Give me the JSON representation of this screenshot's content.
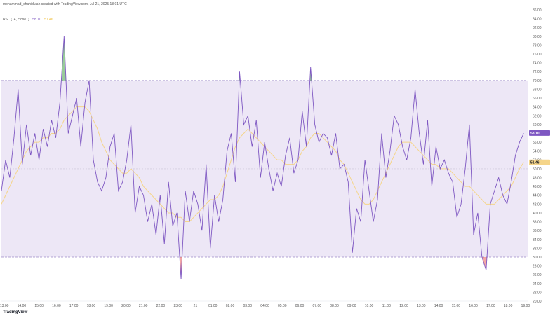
{
  "header": {
    "caption": "mohammad_chahidulah created with TradingView.com, Jul 21, 2025 18:01 UTC"
  },
  "legend": {
    "indicator": "RSI",
    "params": "14, close",
    "rsi_value": "58.10",
    "ma_value": "51.46"
  },
  "footer": {
    "brand": "TradingView"
  },
  "colors": {
    "rsi_line": "#7e57c2",
    "ma_line": "#f5d58a",
    "band_fill": "#ede7f6",
    "band_border": "#9c89c8",
    "overbought_fill": "#43a047",
    "oversold_fill": "#e53935",
    "rsi_tag": "#7e57c2",
    "ma_tag": "#f5d58a"
  },
  "chart_data": {
    "type": "line",
    "indicator": "RSI (14, close) with moving average",
    "ylim": [
      20,
      86
    ],
    "y_ticks": [
      "20.00",
      "22.00",
      "24.00",
      "26.00",
      "28.00",
      "30.00",
      "32.00",
      "34.00",
      "36.00",
      "38.00",
      "40.00",
      "42.00",
      "44.00",
      "46.00",
      "48.00",
      "50.00",
      "52.00",
      "54.00",
      "56.00",
      "58.00",
      "60.00",
      "62.00",
      "64.00",
      "66.00",
      "68.00",
      "70.00",
      "72.00",
      "74.00",
      "76.00",
      "78.00",
      "80.00",
      "82.00",
      "84.00",
      "86.00"
    ],
    "x_ticks": [
      "13:00",
      "14:00",
      "15:00",
      "16:00",
      "17:00",
      "18:00",
      "19:00",
      "20:00",
      "21:00",
      "22:00",
      "23:00",
      "21",
      "01:00",
      "02:00",
      "03:00",
      "04:00",
      "05:00",
      "06:00",
      "07:00",
      "08:00",
      "09:00",
      "10:00",
      "11:00",
      "12:00",
      "13:00",
      "14:00",
      "15:00",
      "16:00",
      "17:00",
      "18:00",
      "19:00"
    ],
    "x_tick_positions": [
      0.5,
      3.5,
      6.5,
      9.5,
      12.5,
      15.5,
      18.5,
      21.5,
      24.5,
      27.5,
      30.5,
      33.5,
      36.5,
      39.5,
      42.5,
      45.5,
      48.5,
      51.5,
      54.5,
      57.5,
      60.5,
      63.5,
      66.5,
      69.5,
      72.5,
      75.5,
      78.5,
      81.5,
      84.5,
      87.5,
      90.5
    ],
    "x_range": [
      0,
      91
    ],
    "bands": {
      "overbought": 70,
      "middle": 50,
      "oversold": 30
    },
    "series": [
      {
        "values": [
          45,
          52,
          48,
          57,
          68,
          51,
          60,
          53,
          58,
          52,
          59,
          55,
          61,
          57,
          65,
          80,
          58,
          62,
          66,
          55,
          65,
          70,
          52,
          47,
          45,
          48,
          55,
          58,
          45,
          47,
          52,
          60,
          40,
          46,
          44,
          38,
          42,
          35,
          44,
          33,
          47,
          37,
          40,
          25,
          45,
          38,
          45,
          42,
          36,
          51,
          32,
          44,
          38,
          43,
          54,
          58,
          47,
          72,
          60,
          62,
          55,
          61,
          48,
          56,
          50,
          45,
          49,
          46,
          53,
          57,
          49,
          52,
          63,
          55,
          73,
          60,
          56,
          58,
          57,
          53,
          58,
          50,
          51,
          47,
          31,
          41,
          38,
          52,
          45,
          38,
          43,
          58,
          48,
          54,
          62,
          60,
          55,
          52,
          57,
          68,
          58,
          51,
          61,
          46,
          55,
          50,
          52,
          49,
          47,
          39,
          42,
          50,
          60,
          35,
          40,
          30,
          27,
          42,
          45,
          48,
          44,
          42,
          47,
          53,
          56,
          58
        ]
      },
      {
        "values": [
          42,
          44,
          46,
          48,
          50,
          52,
          54,
          55,
          56,
          56,
          57,
          57,
          58,
          58,
          59,
          61,
          62,
          63,
          64,
          64,
          64,
          63,
          61,
          59,
          56,
          54,
          52,
          51,
          50,
          49,
          49,
          50,
          49,
          48,
          46,
          45,
          44,
          43,
          42,
          41,
          40,
          40,
          39,
          39,
          38,
          38,
          39,
          40,
          41,
          42,
          43,
          43,
          44,
          46,
          49,
          52,
          55,
          57,
          58,
          59,
          58,
          57,
          56,
          55,
          54,
          53,
          52,
          52,
          51,
          51,
          51,
          52,
          54,
          55,
          57,
          58,
          58,
          57,
          56,
          55,
          54,
          52,
          51,
          49,
          47,
          45,
          43,
          42,
          42,
          43,
          45,
          47,
          49,
          51,
          53,
          55,
          56,
          56,
          56,
          55,
          54,
          53,
          52,
          51,
          51,
          50,
          50,
          50,
          49,
          48,
          47,
          46,
          46,
          45,
          44,
          43,
          42,
          42,
          42,
          43,
          44,
          45,
          46,
          48,
          50,
          51.46
        ]
      }
    ],
    "last_values": {
      "rsi": 58.1,
      "ma": 51.46
    }
  }
}
